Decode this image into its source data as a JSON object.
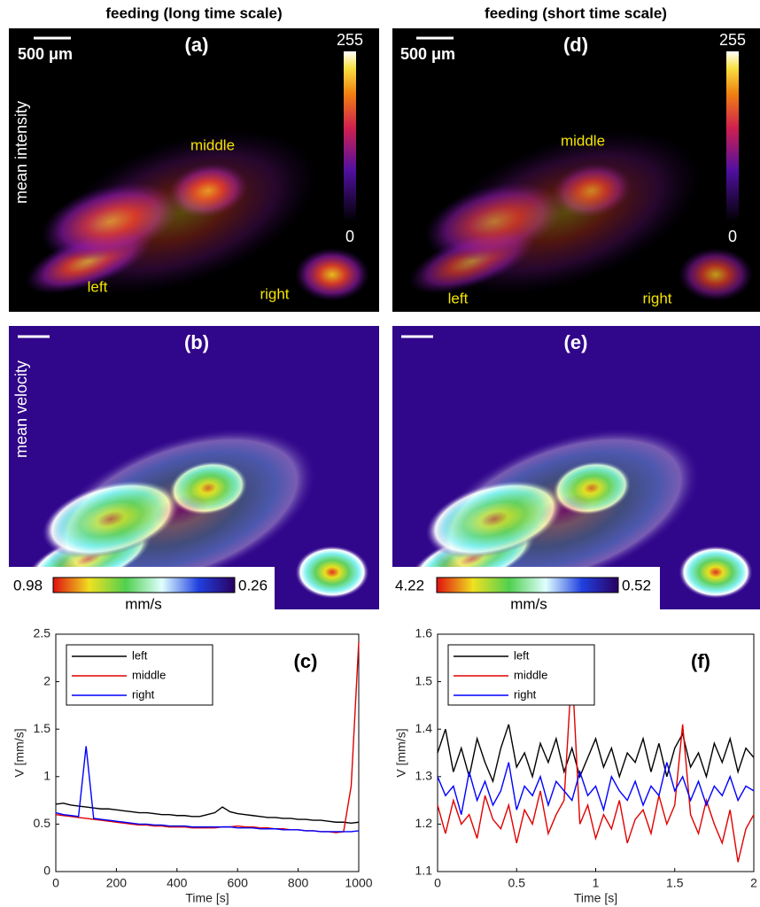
{
  "titles": [
    "feeding (long time scale)",
    "feeding (short time scale)"
  ],
  "panels": {
    "a": {
      "label": "(a)",
      "scale_bar": "500 μm",
      "side_label": "mean intensity",
      "colorbar_max": "255",
      "colorbar_min": "0",
      "regions": [
        "middle",
        "left",
        "right"
      ]
    },
    "d": {
      "label": "(d)",
      "scale_bar": "500 μm",
      "colorbar_max": "255",
      "colorbar_min": "0",
      "regions": [
        "middle",
        "left",
        "right"
      ]
    },
    "b": {
      "label": "(b)",
      "side_label": "mean velocity",
      "colorbar_left": "0.98",
      "colorbar_right": "0.26",
      "colorbar_unit": "mm/s"
    },
    "e": {
      "label": "(e)",
      "colorbar_left": "4.22",
      "colorbar_right": "0.52",
      "colorbar_unit": "mm/s"
    }
  },
  "chart_data": [
    {
      "type": "line",
      "title": "(c)",
      "x_label": "Time [s]",
      "y_label": "V [mm/s]",
      "x": [
        0,
        25,
        50,
        75,
        100,
        125,
        150,
        175,
        200,
        225,
        250,
        275,
        300,
        325,
        350,
        375,
        400,
        425,
        450,
        475,
        500,
        525,
        550,
        575,
        600,
        625,
        650,
        675,
        700,
        725,
        750,
        775,
        800,
        825,
        850,
        875,
        900,
        925,
        950,
        975,
        1000
      ],
      "series": [
        {
          "name": "left",
          "color": "#000000",
          "values": [
            0.71,
            0.72,
            0.7,
            0.69,
            0.68,
            0.67,
            0.66,
            0.66,
            0.65,
            0.64,
            0.63,
            0.62,
            0.62,
            0.61,
            0.6,
            0.6,
            0.59,
            0.59,
            0.58,
            0.58,
            0.6,
            0.62,
            0.68,
            0.63,
            0.61,
            0.6,
            0.59,
            0.58,
            0.57,
            0.57,
            0.56,
            0.56,
            0.55,
            0.55,
            0.54,
            0.54,
            0.53,
            0.52,
            0.52,
            0.51,
            0.52
          ]
        },
        {
          "name": "middle",
          "color": "#e00000",
          "values": [
            0.6,
            0.59,
            0.58,
            0.57,
            0.56,
            0.55,
            0.54,
            0.53,
            0.52,
            0.51,
            0.5,
            0.49,
            0.49,
            0.48,
            0.48,
            0.47,
            0.47,
            0.47,
            0.46,
            0.46,
            0.46,
            0.46,
            0.47,
            0.47,
            0.48,
            0.47,
            0.47,
            0.46,
            0.46,
            0.45,
            0.45,
            0.44,
            0.44,
            0.43,
            0.43,
            0.42,
            0.42,
            0.41,
            0.42,
            0.9,
            2.42
          ]
        },
        {
          "name": "right",
          "color": "#0000ff",
          "values": [
            0.62,
            0.6,
            0.59,
            0.58,
            1.32,
            0.56,
            0.55,
            0.54,
            0.53,
            0.52,
            0.51,
            0.5,
            0.5,
            0.49,
            0.49,
            0.48,
            0.48,
            0.48,
            0.47,
            0.47,
            0.47,
            0.47,
            0.47,
            0.47,
            0.46,
            0.46,
            0.46,
            0.45,
            0.45,
            0.45,
            0.44,
            0.44,
            0.44,
            0.43,
            0.43,
            0.42,
            0.42,
            0.42,
            0.42,
            0.42,
            0.43
          ]
        }
      ],
      "xlim": [
        0,
        1000
      ],
      "xticks": [
        0,
        200,
        400,
        600,
        800,
        1000
      ],
      "ylim": [
        0,
        2.5
      ],
      "yticks": [
        0,
        0.5,
        1,
        1.5,
        2,
        2.5
      ],
      "legend": "upper left"
    },
    {
      "type": "line",
      "title": "(f)",
      "x_label": "Time [s]",
      "y_label": "V [mm/s]",
      "x": [
        0,
        0.05,
        0.1,
        0.15,
        0.2,
        0.25,
        0.3,
        0.35,
        0.4,
        0.45,
        0.5,
        0.55,
        0.6,
        0.65,
        0.7,
        0.75,
        0.8,
        0.85,
        0.9,
        0.95,
        1,
        1.05,
        1.1,
        1.15,
        1.2,
        1.25,
        1.3,
        1.35,
        1.4,
        1.45,
        1.5,
        1.55,
        1.6,
        1.65,
        1.7,
        1.75,
        1.8,
        1.85,
        1.9,
        1.95,
        2
      ],
      "series": [
        {
          "name": "left",
          "color": "#000000",
          "values": [
            1.35,
            1.4,
            1.31,
            1.36,
            1.3,
            1.38,
            1.33,
            1.29,
            1.36,
            1.41,
            1.32,
            1.35,
            1.3,
            1.37,
            1.33,
            1.38,
            1.31,
            1.36,
            1.3,
            1.34,
            1.38,
            1.32,
            1.36,
            1.3,
            1.35,
            1.33,
            1.38,
            1.31,
            1.37,
            1.3,
            1.36,
            1.39,
            1.32,
            1.35,
            1.3,
            1.37,
            1.33,
            1.38,
            1.31,
            1.36,
            1.34
          ]
        },
        {
          "name": "middle",
          "color": "#e00000",
          "values": [
            1.24,
            1.18,
            1.25,
            1.2,
            1.22,
            1.17,
            1.26,
            1.21,
            1.19,
            1.24,
            1.16,
            1.23,
            1.2,
            1.27,
            1.18,
            1.22,
            1.25,
            1.53,
            1.2,
            1.24,
            1.17,
            1.22,
            1.19,
            1.25,
            1.16,
            1.21,
            1.23,
            1.18,
            1.26,
            1.2,
            1.24,
            1.41,
            1.22,
            1.18,
            1.25,
            1.2,
            1.16,
            1.23,
            1.12,
            1.19,
            1.22
          ]
        },
        {
          "name": "right",
          "color": "#0000ff",
          "values": [
            1.3,
            1.26,
            1.28,
            1.22,
            1.31,
            1.25,
            1.29,
            1.24,
            1.27,
            1.33,
            1.23,
            1.28,
            1.26,
            1.3,
            1.24,
            1.29,
            1.27,
            1.25,
            1.31,
            1.26,
            1.28,
            1.23,
            1.3,
            1.27,
            1.25,
            1.29,
            1.24,
            1.28,
            1.26,
            1.33,
            1.27,
            1.3,
            1.25,
            1.29,
            1.24,
            1.28,
            1.26,
            1.3,
            1.25,
            1.28,
            1.27
          ]
        }
      ],
      "xlim": [
        0,
        2
      ],
      "xticks": [
        0,
        0.5,
        1,
        1.5,
        2
      ],
      "ylim": [
        1.1,
        1.6
      ],
      "yticks": [
        1.1,
        1.2,
        1.3,
        1.4,
        1.5,
        1.6
      ],
      "legend": "upper left"
    }
  ]
}
